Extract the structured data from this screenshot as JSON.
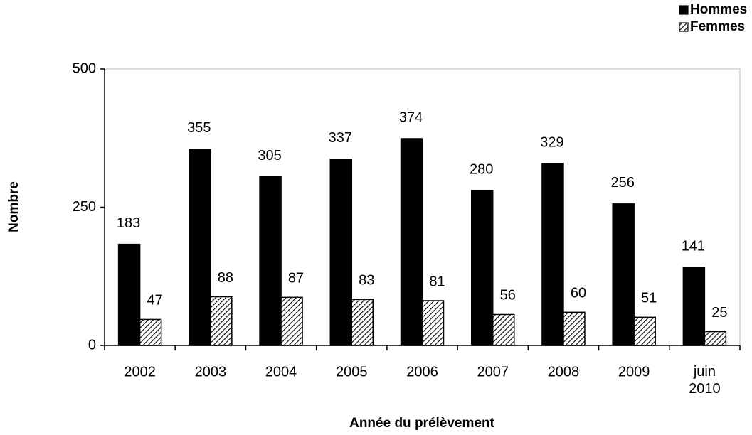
{
  "chart_data": {
    "type": "bar",
    "x_label": "Année du prélèvement",
    "y_label": "Nombre",
    "categories": [
      "2002",
      "2003",
      "2004",
      "2005",
      "2006",
      "2007",
      "2008",
      "2009",
      "juin 2010"
    ],
    "series": [
      {
        "name": "Hommes",
        "color": "#000000",
        "values": [
          183,
          355,
          305,
          337,
          374,
          280,
          329,
          256,
          141
        ]
      },
      {
        "name": "Femmes",
        "color": "hatch",
        "values": [
          47,
          88,
          87,
          83,
          81,
          56,
          60,
          51,
          25
        ]
      }
    ],
    "ylim": [
      0,
      500
    ],
    "yticks": [
      0,
      250,
      500
    ],
    "legend": "top-right"
  }
}
